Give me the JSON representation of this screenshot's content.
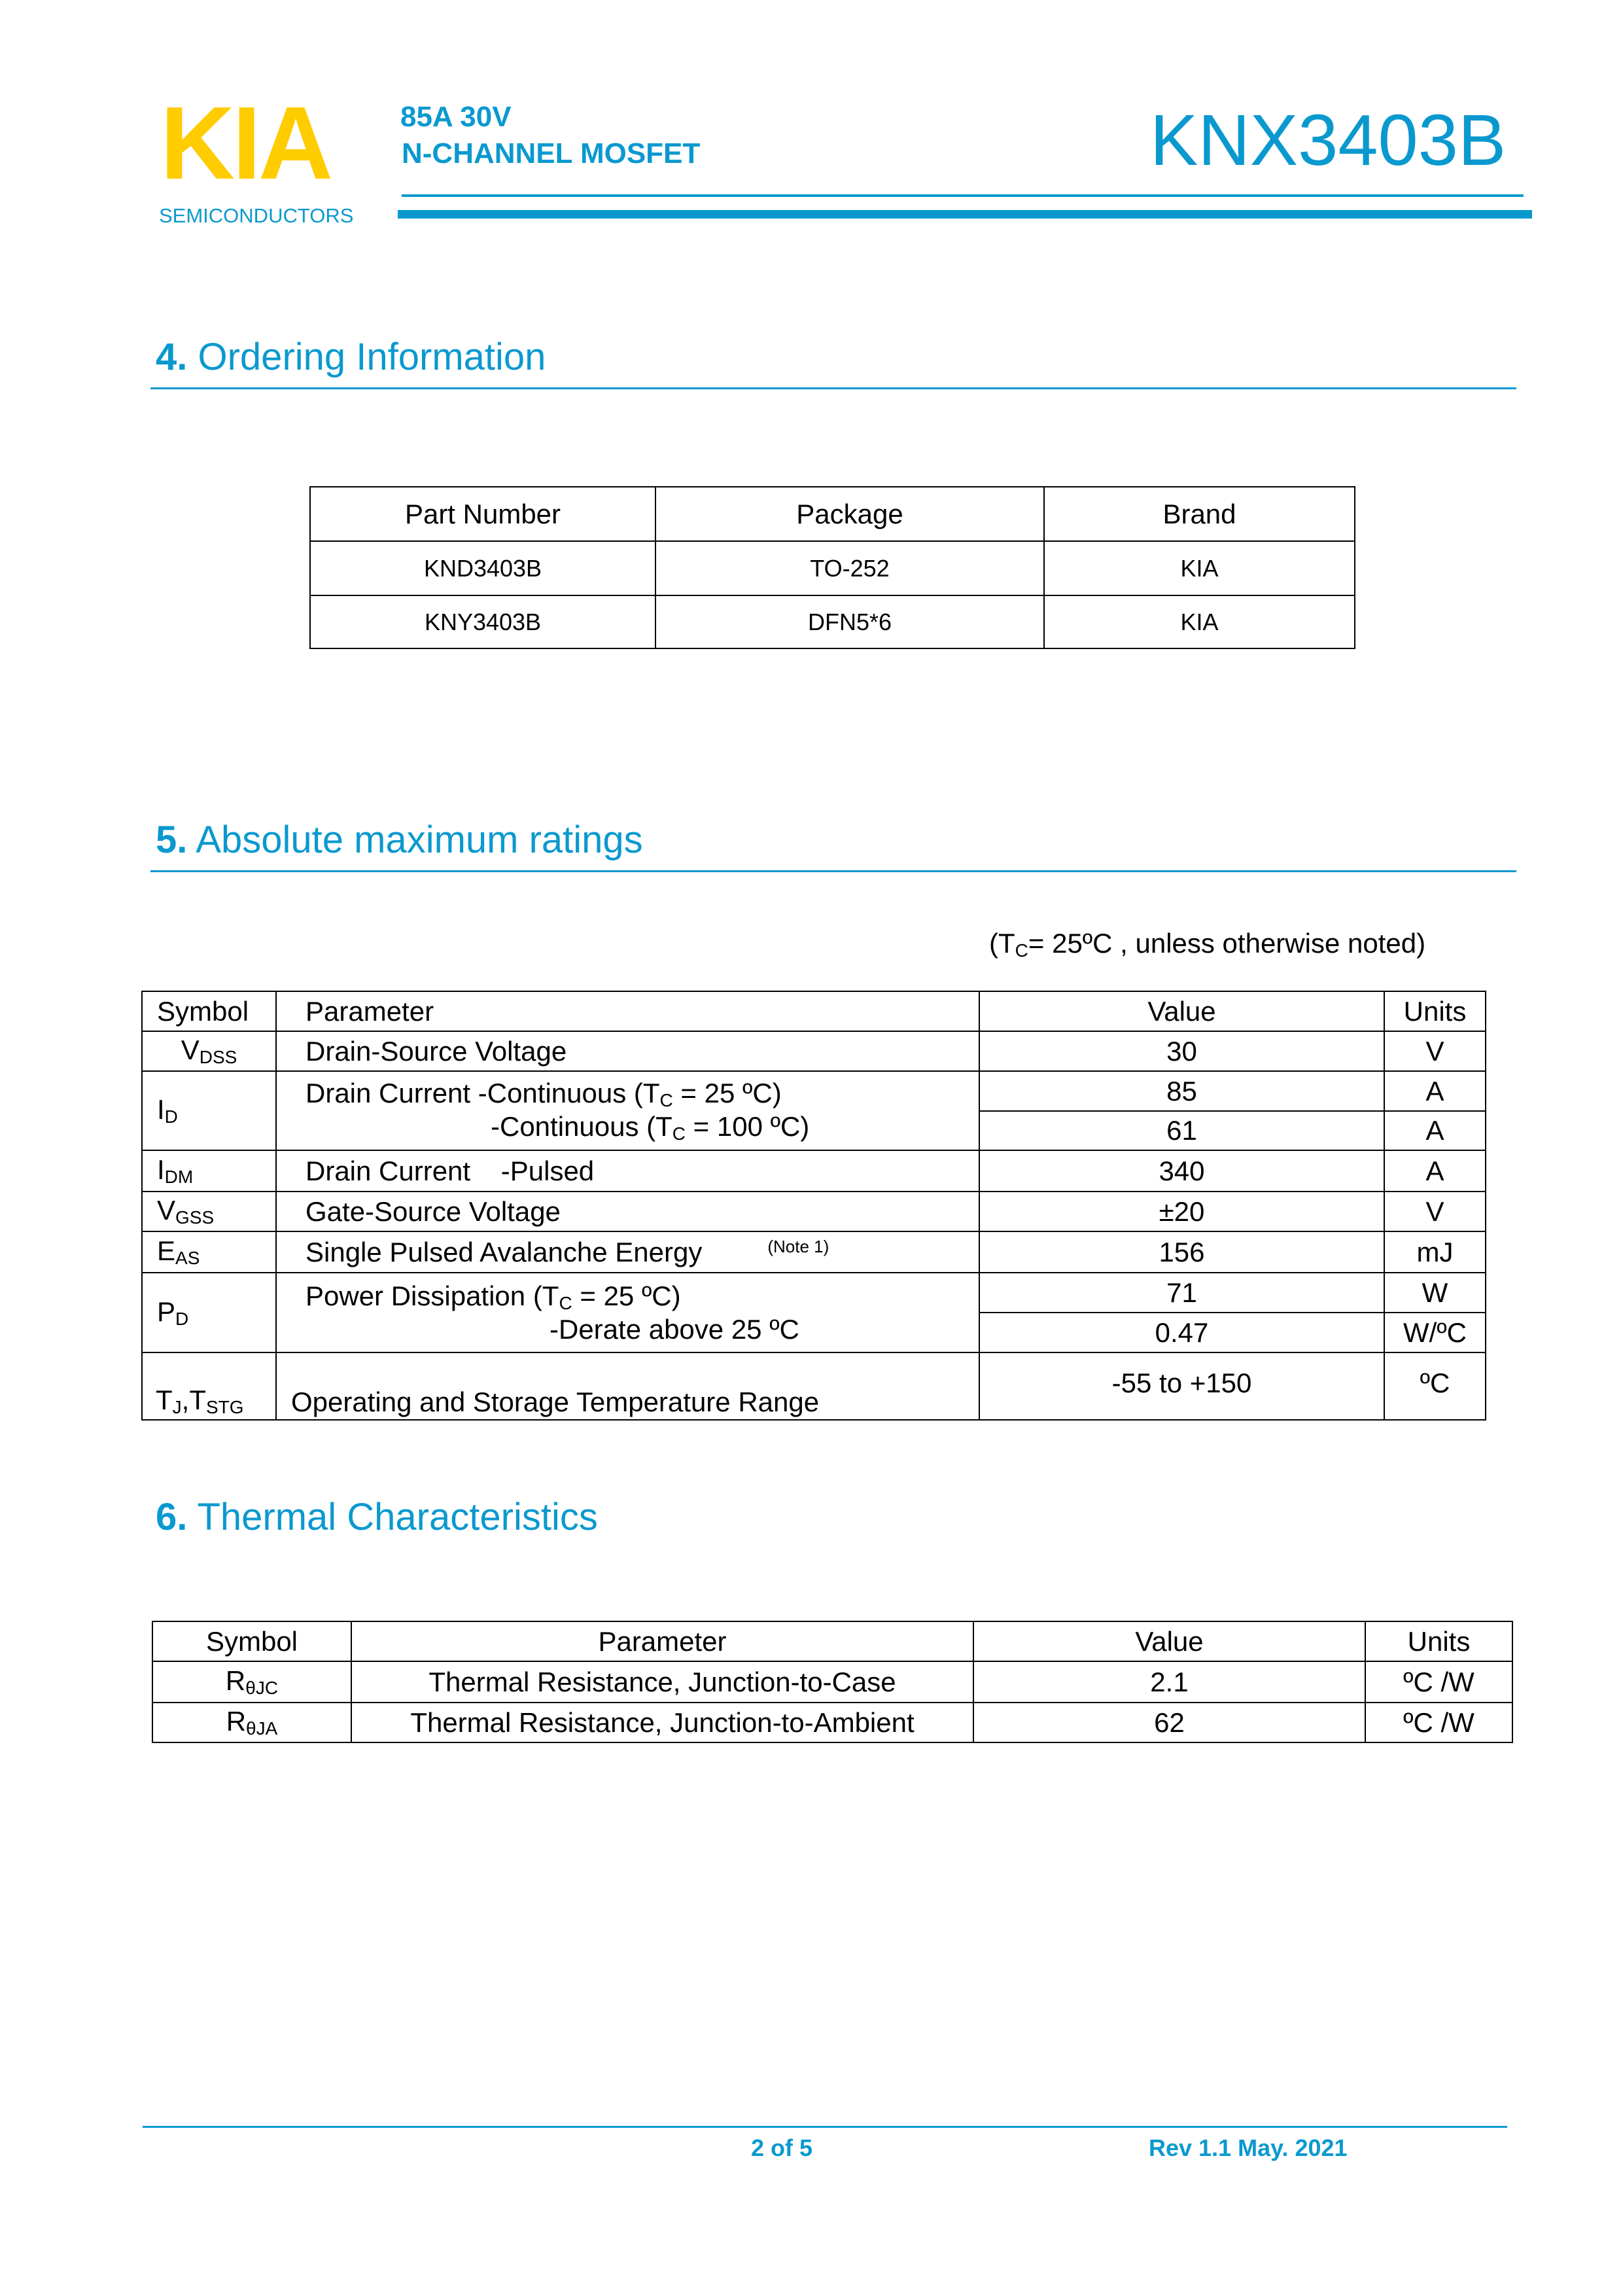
{
  "header": {
    "logo": "KIA",
    "logo_sub": "SEMICONDUCTORS",
    "rating": "85A 30V",
    "type": "N-CHANNEL MOSFET",
    "part": "KNX3403B",
    "colors": {
      "brand_blue": "#0a99cf",
      "logo_yellow": "#ffcc00"
    }
  },
  "ordering": {
    "num": "4.",
    "title": "Ordering Information",
    "headers": [
      "Part Number",
      "Package",
      "Brand"
    ],
    "rows": [
      [
        "KND3403B",
        "TO-252",
        "KIA"
      ],
      [
        "KNY3403B",
        "DFN5*6",
        "KIA"
      ]
    ]
  },
  "absmax": {
    "num": "5.",
    "title": "Absolute maximum ratings",
    "note_pre": "(T",
    "note_sub": "C",
    "note_post": "= 25ºC , unless otherwise noted)",
    "headers": [
      "Symbol",
      "Parameter",
      "Value",
      "Units"
    ],
    "rows": [
      {
        "sym": "V",
        "sub": "DSS",
        "param": "Drain-Source Voltage",
        "value": "30",
        "unit": "V"
      },
      {
        "sym": "I",
        "sub": "D",
        "param1": "Drain Current -Continuous (T",
        "param1_sub": "C",
        "param1_post": " = 25 ºC)",
        "param2": "-Continuous (T",
        "param2_sub": "C",
        "param2_post": " = 100 ºC)",
        "value1": "85",
        "unit1": "A",
        "value2": "61",
        "unit2": "A"
      },
      {
        "sym": "I",
        "sub": "DM",
        "param": "Drain Current    -Pulsed",
        "value": "340",
        "unit": "A"
      },
      {
        "sym": "V",
        "sub": "GSS",
        "param": "Gate-Source Voltage",
        "value": "±20",
        "unit": "V"
      },
      {
        "sym": "E",
        "sub": "AS",
        "param": "Single Pulsed Avalanche Energy",
        "note": "(Note 1)",
        "value": "156",
        "unit": "mJ"
      },
      {
        "sym": "P",
        "sub": "D",
        "param1": "Power Dissipation (T",
        "param1_sub": "C",
        "param1_post": " = 25 ºC)",
        "param2": "-Derate above 25 ºC",
        "value1": "71",
        "unit1": "W",
        "value2": "0.47",
        "unit2": "W/ºC"
      },
      {
        "sym": "T",
        "sub": "J",
        "sym2": ",T",
        "sub2": "STG",
        "param": "Operating and Storage Temperature Range",
        "value": "-55 to +150",
        "unit": "ºC"
      }
    ]
  },
  "thermal": {
    "num": "6.",
    "title": "Thermal Characteristics",
    "headers": [
      "Symbol",
      "Parameter",
      "Value",
      "Units"
    ],
    "rows": [
      {
        "sym": "R",
        "sub": "θJC",
        "param": "Thermal Resistance, Junction-to-Case",
        "value": "2.1",
        "unit": "ºC /W"
      },
      {
        "sym": "R",
        "sub": "θJA",
        "param": "Thermal Resistance, Junction-to-Ambient",
        "value": "62",
        "unit": "ºC /W"
      }
    ]
  },
  "footer": {
    "page": "2 of 5",
    "rev": "Rev 1.1 May. 2021"
  }
}
